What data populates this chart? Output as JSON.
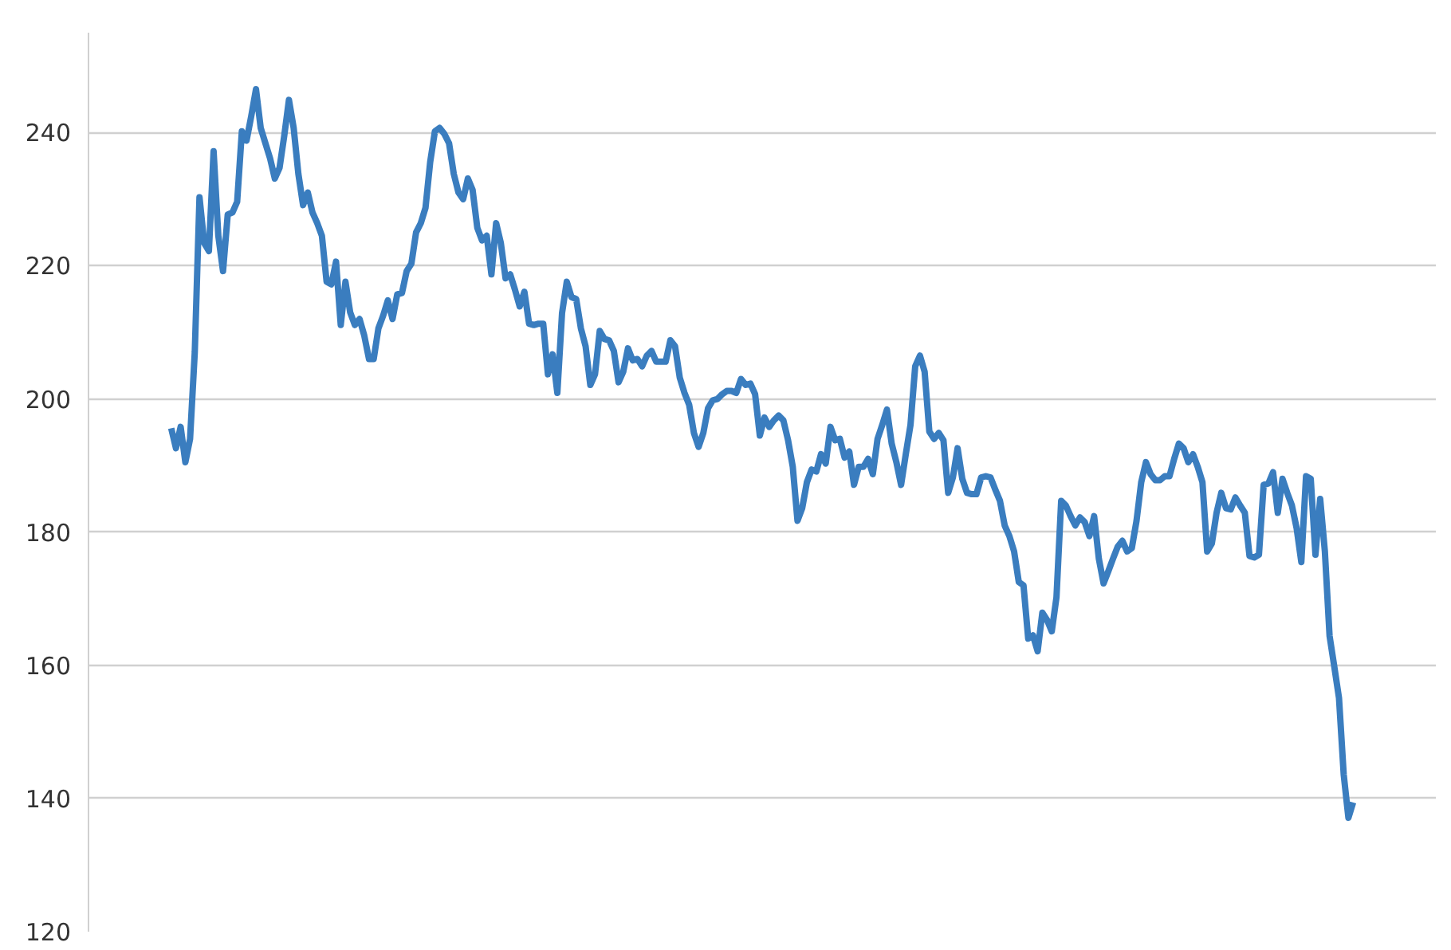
{
  "chart_data": {
    "type": "line",
    "grid": "y",
    "ylim": [
      120,
      255
    ],
    "yticks": [
      120,
      140,
      160,
      180,
      200,
      220,
      240
    ],
    "categories": [
      null,
      null,
      null,
      null,
      null,
      null,
      null,
      null,
      null,
      null,
      null,
      null,
      null,
      null,
      null,
      null,
      null,
      null,
      null,
      null,
      null,
      null,
      null,
      null,
      null,
      null,
      null,
      null,
      null,
      null,
      null,
      null,
      null,
      null,
      null,
      null,
      null,
      null,
      null,
      null,
      null,
      null,
      null,
      null,
      null,
      null,
      null,
      null,
      null,
      null,
      null,
      null,
      null,
      null,
      null,
      null,
      null,
      null,
      null,
      null,
      null,
      null,
      null,
      null,
      null,
      null,
      null,
      null,
      null,
      null,
      null,
      null,
      null,
      null,
      null,
      null,
      null,
      null,
      null,
      null,
      null,
      null,
      null,
      null,
      null,
      null,
      null,
      null,
      null,
      null,
      null,
      null,
      null,
      null,
      null,
      null,
      null,
      null,
      null,
      null,
      null,
      null,
      null,
      null,
      null,
      null,
      null,
      null,
      null,
      null,
      null,
      null,
      null,
      null,
      null,
      null,
      null,
      null,
      null,
      null,
      null,
      null,
      null,
      null,
      null,
      null,
      null,
      null,
      null,
      null,
      null,
      null,
      null,
      null,
      null,
      null,
      null,
      null,
      null,
      null,
      null,
      null,
      null,
      null,
      null,
      null,
      null,
      null,
      null,
      null,
      null,
      null,
      null,
      null,
      null,
      null,
      null,
      null,
      null,
      null,
      null,
      null,
      null,
      null,
      null,
      null,
      null,
      null,
      null,
      null,
      null,
      null,
      null,
      null,
      null,
      null,
      null,
      null,
      null,
      null,
      null,
      null,
      null,
      null,
      null,
      null,
      null,
      null,
      null,
      null,
      null,
      null,
      null,
      null,
      null,
      null,
      null,
      null,
      null,
      null,
      null,
      null,
      null,
      null,
      null,
      null,
      null,
      null,
      null,
      null,
      null,
      null,
      null,
      null,
      null,
      null,
      null,
      null,
      null,
      null,
      null,
      null,
      null,
      null,
      null,
      null,
      null,
      null,
      null,
      null,
      null,
      null,
      null,
      null,
      null,
      null,
      null,
      null,
      null,
      null,
      null,
      null,
      null,
      null,
      null,
      null,
      null,
      null,
      null,
      null,
      null,
      null
    ],
    "series": [
      {
        "color": "#3a7dbf",
        "values": [
          195.6,
          192.6,
          195.8,
          190.5,
          194,
          207,
          230.3,
          223.4,
          222.2,
          237.2,
          224.5,
          219.2,
          227.7,
          228,
          229.6,
          240.2,
          238.8,
          242.5,
          246.5,
          240.7,
          238.4,
          236.1,
          233.1,
          234.7,
          239.5,
          244.9,
          240.7,
          233.8,
          229.1,
          231,
          228,
          226.4,
          224.5,
          217.6,
          217.2,
          220.6,
          211.1,
          217.6,
          213,
          211.1,
          212,
          209.5,
          206,
          206,
          210.6,
          212.5,
          214.8,
          212,
          215.7,
          215.9,
          219.2,
          220.3,
          225,
          226.4,
          228.7,
          235.6,
          240.2,
          240.7,
          239.8,
          238.4,
          233.8,
          231,
          230,
          233.1,
          231.4,
          225.7,
          223.8,
          224.5,
          218.7,
          226.4,
          223.4,
          218.1,
          218.7,
          216.4,
          213.9,
          216.1,
          211.3,
          211.1,
          211.3,
          211.3,
          203.7,
          206.7,
          200.9,
          212.9,
          217.6,
          215.3,
          215,
          210.6,
          207.9,
          202.1,
          203.7,
          210.2,
          209,
          208.8,
          207.2,
          202.5,
          204.1,
          207.6,
          205.8,
          206,
          204.9,
          206.5,
          207.2,
          205.6,
          205.6,
          205.6,
          208.8,
          207.9,
          203.2,
          200.9,
          199.1,
          194.9,
          192.8,
          194.9,
          198.6,
          199.8,
          200,
          200.7,
          201.2,
          201.2,
          200.9,
          203,
          202.1,
          202.3,
          200.7,
          194.5,
          197.2,
          195.8,
          196.8,
          197.5,
          196.8,
          193.8,
          189.8,
          181.7,
          183.6,
          187.5,
          189.4,
          189.1,
          191.7,
          190.3,
          195.8,
          193.8,
          194,
          191.2,
          192.1,
          187.1,
          189.8,
          189.8,
          191,
          188.7,
          194,
          196.1,
          198.4,
          193.3,
          190.5,
          187.1,
          191.7,
          196.1,
          204.9,
          206.5,
          204.1,
          195.1,
          194,
          194.9,
          193.8,
          185.9,
          188.2,
          192.6,
          188,
          185.9,
          185.7,
          185.7,
          188.2,
          188.4,
          188.2,
          186.4,
          184.7,
          181,
          179.4,
          177.1,
          172.5,
          172,
          164,
          164.5,
          162.1,
          167.9,
          166.8,
          165.1,
          170.2,
          184.7,
          184,
          182.4,
          181,
          182.2,
          181.5,
          179.4,
          182.4,
          176,
          172.3,
          174.1,
          176,
          177.8,
          178.7,
          177.1,
          177.6,
          181.7,
          187.5,
          190.5,
          188.7,
          187.8,
          187.8,
          188.4,
          188.4,
          191,
          193.3,
          192.6,
          190.5,
          191.7,
          189.8,
          187.5,
          177.1,
          178.3,
          182.9,
          185.9,
          183.6,
          183.4,
          185.2,
          184,
          182.9,
          176.4,
          176.2,
          176.6,
          187.1,
          187.3,
          189,
          182.9,
          188,
          185.9,
          184,
          180.6,
          175.5,
          188.4,
          188,
          176.6,
          185,
          177.1,
          164.4,
          159.8,
          155.1,
          143.6,
          137.1,
          139.4
        ]
      }
    ]
  }
}
